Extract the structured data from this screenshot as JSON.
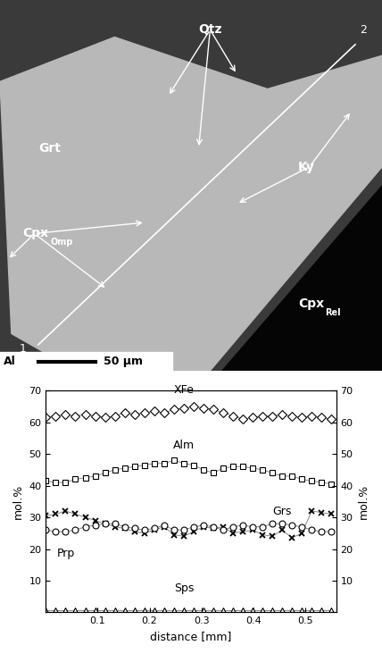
{
  "image": {
    "map": "Al",
    "scale_bar": "50 µm",
    "traverse": [
      "1",
      "2"
    ],
    "labels": [
      {
        "text": "Qtz"
      },
      {
        "text": "Grt"
      },
      {
        "text": "Ky"
      },
      {
        "text": "Cpx",
        "sub": "Omp"
      },
      {
        "text": "Cpx",
        "sub": "Rel"
      }
    ]
  },
  "chart_data": {
    "type": "line",
    "xlabel": "distance [mm]",
    "ylabel": "mol.%",
    "y2label": "mol.%",
    "x": [
      0.0,
      0.019,
      0.038,
      0.057,
      0.076,
      0.095,
      0.114,
      0.133,
      0.152,
      0.171,
      0.19,
      0.209,
      0.228,
      0.247,
      0.266,
      0.285,
      0.304,
      0.323,
      0.342,
      0.361,
      0.38,
      0.399,
      0.418,
      0.437,
      0.456,
      0.475,
      0.494,
      0.513,
      0.532,
      0.551
    ],
    "xlim": [
      0,
      0.56
    ],
    "xticks": [
      0.1,
      0.2,
      0.3,
      0.4,
      0.5
    ],
    "ylim": [
      0,
      70
    ],
    "yticks": [
      10,
      20,
      30,
      40,
      50,
      60,
      70
    ],
    "y2lim": [
      0,
      70
    ],
    "y2ticks": [
      10,
      20,
      30,
      40,
      50,
      60,
      70
    ],
    "series": [
      {
        "name": "XFe",
        "color": "#000000",
        "marker": "diamond",
        "values": [
          61.5,
          62,
          62.5,
          62,
          62.5,
          62,
          61.5,
          62,
          63,
          62.5,
          63,
          63.5,
          63,
          64,
          64.5,
          65,
          64.5,
          64,
          63,
          62,
          61,
          61.5,
          62,
          62,
          62.5,
          62,
          61.5,
          62,
          61.5,
          61
        ]
      },
      {
        "name": "Alm",
        "color": "#000000",
        "marker": "square",
        "values": [
          41.5,
          41,
          41,
          42,
          42.5,
          43,
          44,
          45,
          45.5,
          46,
          46.5,
          47,
          47,
          48,
          47,
          46.5,
          45,
          44,
          45.5,
          46,
          46,
          45.5,
          45,
          44,
          43,
          43,
          42,
          41.5,
          41,
          40.5
        ]
      },
      {
        "name": "Grs",
        "color": "#000000",
        "marker": "x",
        "values": [
          30.5,
          31,
          32,
          31,
          30,
          29,
          28,
          27,
          26.5,
          25.5,
          25,
          26,
          27,
          24.5,
          24,
          25.5,
          27,
          26.5,
          27,
          25,
          25.5,
          26,
          24.5,
          24,
          26,
          23.5,
          25,
          32,
          31.5,
          31
        ]
      },
      {
        "name": "Prp",
        "color": "#000000",
        "marker": "circle",
        "values": [
          26,
          25.5,
          25.5,
          26,
          27,
          27.5,
          28,
          28,
          27,
          26.5,
          26,
          26.5,
          27.5,
          26,
          26,
          27,
          27.5,
          27,
          26,
          27,
          27.5,
          27,
          27,
          28,
          28,
          27.5,
          27,
          26,
          25.5,
          25.5
        ]
      },
      {
        "name": "Sps",
        "color": "#000000",
        "marker": "triangle",
        "values": [
          0.7,
          0.7,
          0.7,
          0.7,
          0.7,
          0.7,
          0.7,
          0.7,
          0.7,
          0.7,
          0.7,
          0.7,
          0.7,
          0.7,
          0.7,
          0.7,
          0.7,
          0.7,
          0.7,
          0.7,
          0.7,
          0.7,
          0.7,
          0.7,
          0.7,
          0.7,
          0.7,
          0.7,
          0.7,
          0.7
        ]
      }
    ]
  }
}
